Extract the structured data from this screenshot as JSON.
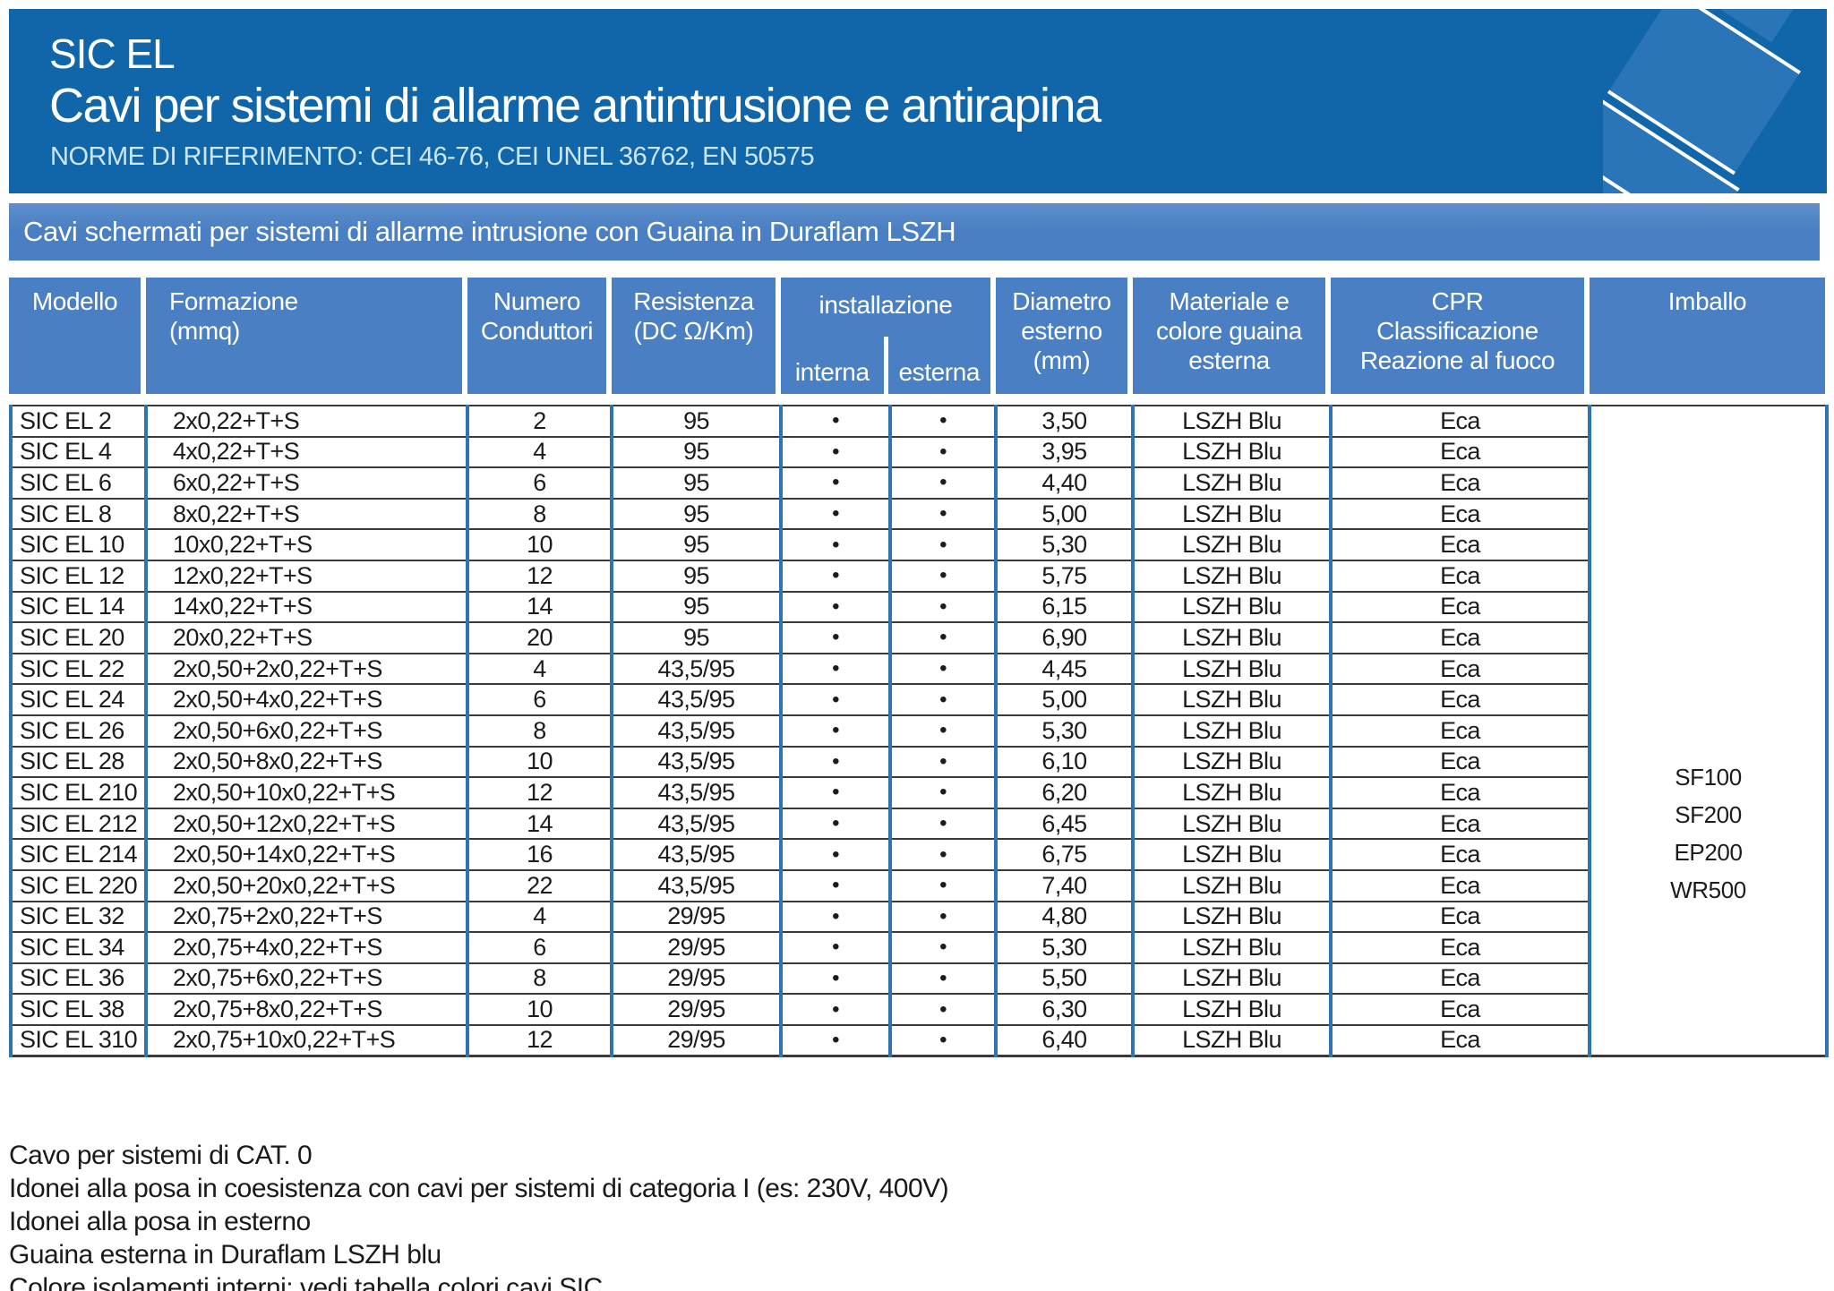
{
  "header": {
    "product_code": "SIC EL",
    "title": "Cavi per sistemi di allarme antintrusione e antirapina",
    "norms": "NORME DI RIFERIMENTO: CEI 46-76, CEI UNEL 36762, EN 50575"
  },
  "band": {
    "label": "Cavi schermati per sistemi di allarme intrusione con Guaina in Duraflam LSZH"
  },
  "table": {
    "bullet": "•",
    "columns": {
      "modello": "Modello",
      "formazione": "Formazione\n(mmq)",
      "numero": "Numero\nConduttori",
      "resistenza": "Resistenza\n(DC Ω/Km)",
      "installazione": "installazione",
      "interna": "interna",
      "esterna": "esterna",
      "diametro": "Diametro\nesterno\n(mm)",
      "materiale": "Materiale e\ncolore guaina\nesterna",
      "cpr": "CPR\nClassificazione\nReazione al fuoco",
      "imballo": "Imballo"
    },
    "rows": [
      {
        "model": "SIC EL 2",
        "formation": "2x0,22+T+S",
        "conductors": "2",
        "resistance": "95",
        "interna": true,
        "esterna": true,
        "diameter": "3,50",
        "sheath": "LSZH Blu",
        "cpr": "Eca"
      },
      {
        "model": "SIC EL 4",
        "formation": "4x0,22+T+S",
        "conductors": "4",
        "resistance": "95",
        "interna": true,
        "esterna": true,
        "diameter": "3,95",
        "sheath": "LSZH Blu",
        "cpr": "Eca"
      },
      {
        "model": "SIC EL 6",
        "formation": "6x0,22+T+S",
        "conductors": "6",
        "resistance": "95",
        "interna": true,
        "esterna": true,
        "diameter": "4,40",
        "sheath": "LSZH Blu",
        "cpr": "Eca"
      },
      {
        "model": "SIC EL 8",
        "formation": "8x0,22+T+S",
        "conductors": "8",
        "resistance": "95",
        "interna": true,
        "esterna": true,
        "diameter": "5,00",
        "sheath": "LSZH Blu",
        "cpr": "Eca"
      },
      {
        "model": "SIC EL 10",
        "formation": "10x0,22+T+S",
        "conductors": "10",
        "resistance": "95",
        "interna": true,
        "esterna": true,
        "diameter": "5,30",
        "sheath": "LSZH Blu",
        "cpr": "Eca"
      },
      {
        "model": "SIC EL 12",
        "formation": "12x0,22+T+S",
        "conductors": "12",
        "resistance": "95",
        "interna": true,
        "esterna": true,
        "diameter": "5,75",
        "sheath": "LSZH Blu",
        "cpr": "Eca"
      },
      {
        "model": "SIC EL 14",
        "formation": "14x0,22+T+S",
        "conductors": "14",
        "resistance": "95",
        "interna": true,
        "esterna": true,
        "diameter": "6,15",
        "sheath": "LSZH Blu",
        "cpr": "Eca"
      },
      {
        "model": "SIC EL 20",
        "formation": "20x0,22+T+S",
        "conductors": "20",
        "resistance": "95",
        "interna": true,
        "esterna": true,
        "diameter": "6,90",
        "sheath": "LSZH Blu",
        "cpr": "Eca"
      },
      {
        "model": "SIC EL 22",
        "formation": "2x0,50+2x0,22+T+S",
        "conductors": "4",
        "resistance": "43,5/95",
        "interna": true,
        "esterna": true,
        "diameter": "4,45",
        "sheath": "LSZH Blu",
        "cpr": "Eca"
      },
      {
        "model": "SIC EL 24",
        "formation": "2x0,50+4x0,22+T+S",
        "conductors": "6",
        "resistance": "43,5/95",
        "interna": true,
        "esterna": true,
        "diameter": "5,00",
        "sheath": "LSZH Blu",
        "cpr": "Eca"
      },
      {
        "model": "SIC EL 26",
        "formation": "2x0,50+6x0,22+T+S",
        "conductors": "8",
        "resistance": "43,5/95",
        "interna": true,
        "esterna": true,
        "diameter": "5,30",
        "sheath": "LSZH Blu",
        "cpr": "Eca"
      },
      {
        "model": "SIC EL 28",
        "formation": "2x0,50+8x0,22+T+S",
        "conductors": "10",
        "resistance": "43,5/95",
        "interna": true,
        "esterna": true,
        "diameter": "6,10",
        "sheath": "LSZH Blu",
        "cpr": "Eca"
      },
      {
        "model": "SIC EL 210",
        "formation": "2x0,50+10x0,22+T+S",
        "conductors": "12",
        "resistance": "43,5/95",
        "interna": true,
        "esterna": true,
        "diameter": "6,20",
        "sheath": "LSZH Blu",
        "cpr": "Eca"
      },
      {
        "model": "SIC EL 212",
        "formation": "2x0,50+12x0,22+T+S",
        "conductors": "14",
        "resistance": "43,5/95",
        "interna": true,
        "esterna": true,
        "diameter": "6,45",
        "sheath": "LSZH Blu",
        "cpr": "Eca"
      },
      {
        "model": "SIC EL 214",
        "formation": "2x0,50+14x0,22+T+S",
        "conductors": "16",
        "resistance": "43,5/95",
        "interna": true,
        "esterna": true,
        "diameter": "6,75",
        "sheath": "LSZH Blu",
        "cpr": "Eca"
      },
      {
        "model": "SIC EL 220",
        "formation": "2x0,50+20x0,22+T+S",
        "conductors": "22",
        "resistance": "43,5/95",
        "interna": true,
        "esterna": true,
        "diameter": "7,40",
        "sheath": "LSZH Blu",
        "cpr": "Eca"
      },
      {
        "model": "SIC EL 32",
        "formation": "2x0,75+2x0,22+T+S",
        "conductors": "4",
        "resistance": "29/95",
        "interna": true,
        "esterna": true,
        "diameter": "4,80",
        "sheath": "LSZH Blu",
        "cpr": "Eca"
      },
      {
        "model": "SIC EL 34",
        "formation": "2x0,75+4x0,22+T+S",
        "conductors": "6",
        "resistance": "29/95",
        "interna": true,
        "esterna": true,
        "diameter": "5,30",
        "sheath": "LSZH Blu",
        "cpr": "Eca"
      },
      {
        "model": "SIC EL 36",
        "formation": "2x0,75+6x0,22+T+S",
        "conductors": "8",
        "resistance": "29/95",
        "interna": true,
        "esterna": true,
        "diameter": "5,50",
        "sheath": "LSZH Blu",
        "cpr": "Eca"
      },
      {
        "model": "SIC EL 38",
        "formation": "2x0,75+8x0,22+T+S",
        "conductors": "10",
        "resistance": "29/95",
        "interna": true,
        "esterna": true,
        "diameter": "6,30",
        "sheath": "LSZH Blu",
        "cpr": "Eca"
      },
      {
        "model": "SIC EL 310",
        "formation": "2x0,75+10x0,22+T+S",
        "conductors": "12",
        "resistance": "29/95",
        "interna": true,
        "esterna": true,
        "diameter": "6,40",
        "sheath": "LSZH Blu",
        "cpr": "Eca"
      }
    ],
    "imballo_values": [
      "SF100",
      "SF200",
      "EP200",
      "WR500"
    ]
  },
  "notes": [
    "Cavo per sistemi di CAT. 0",
    "Idonei alla posa in coesistenza con cavi per sistemi di categoria I (es: 230V, 400V)",
    "Idonei alla posa in esterno",
    "Guaina esterna in Duraflam LSZH blu",
    "Colore isolamenti interni: vedi tabella colori cavi SIC"
  ],
  "colors": {
    "dark_blue": "#1165a9",
    "medium_blue": "#4a80c3",
    "border_blue": "#2e74b5",
    "row_line": "#3a3a3a",
    "norms_text": "#cde7fa"
  }
}
